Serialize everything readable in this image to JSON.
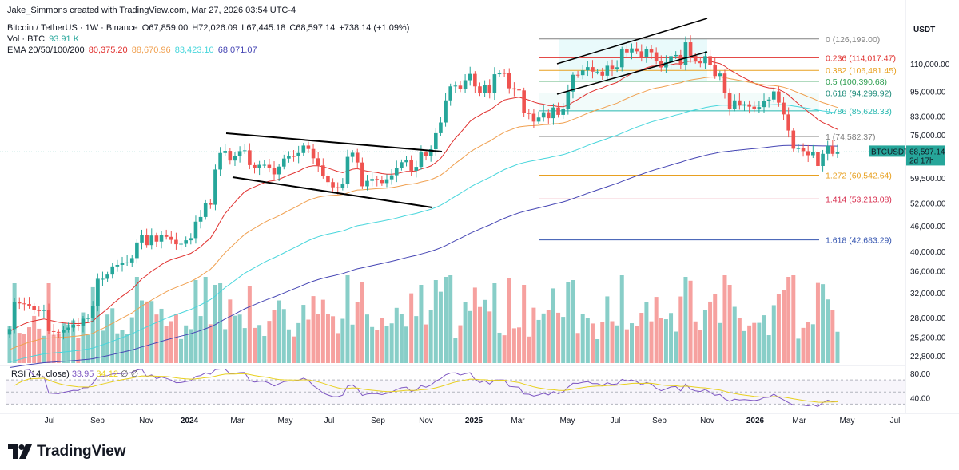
{
  "header": {
    "author_line": "Jake_Simmons created with TradingView.com, Mar 27, 2026 03:54 UTC-4",
    "symbol": "Bitcoin / TetherUS · 1W · Binance",
    "ohlc": {
      "o": "O67,859.00",
      "h": "H72,026.09",
      "l": "L67,445.18",
      "c": "C68,597.14",
      "chg": "+738.14 (+1.09%)"
    },
    "vol_label": "Vol · BTC",
    "vol_value": "93.91 K",
    "ema_label": "EMA 20/50/100/200",
    "ema_values": [
      "80,375.20",
      "88,670.96",
      "83,423.10",
      "68,071.07"
    ]
  },
  "colors": {
    "up": "#26a69a",
    "down": "#ef5350",
    "ema20": "#e0302e",
    "ema50": "#f0a050",
    "ema100": "#48d6dc",
    "ema200": "#4646b4",
    "fib0": "#808080",
    "fib236": "#e0302e",
    "fib382": "#e8a020",
    "fib5": "#2e9e50",
    "fib618": "#1a8a78",
    "fib786": "#28b8b0",
    "fib1": "#808080",
    "fib1272": "#e8a020",
    "fib1414": "#d83050",
    "fib1618": "#3454b0"
  },
  "price_axis": {
    "currency": "USDT",
    "ticks": [
      "110,000.00",
      "95,000.00",
      "83,000.00",
      "75,000.00",
      "59,500.00",
      "52,000.00",
      "46,000.00",
      "40,000.00",
      "36,000.00",
      "32,000.00",
      "28,000.00",
      "25,200.00",
      "22,800.00"
    ],
    "last_symbol": "BTCUSDT",
    "last_price": "68,597.14",
    "countdown": "2d 17h"
  },
  "rsi": {
    "label": "RSI (14, close)",
    "value": "33.95",
    "ma_value": "34.12",
    "null_marks": "∅ ∅",
    "ticks": [
      "80.00",
      "40.00"
    ]
  },
  "time_axis": [
    "Jul",
    "Sep",
    "Nov",
    "2024",
    "Mar",
    "May",
    "Jul",
    "Sep",
    "Nov",
    "2025",
    "Mar",
    "May",
    "Jul",
    "Sep",
    "Nov",
    "2026",
    "Mar",
    "May",
    "Jul"
  ],
  "fib_levels": [
    {
      "label": "0 (126,199.00)",
      "color": "#808080"
    },
    {
      "label": "0.236 (114,017.47)",
      "color": "#e0302e"
    },
    {
      "label": "0.382 (106,481.45)",
      "color": "#e8a020"
    },
    {
      "label": "0.5 (100,390.68)",
      "color": "#2e9e50"
    },
    {
      "label": "0.618 (94,299.92)",
      "color": "#1a8a78"
    },
    {
      "label": "0.786 (85,628.33)",
      "color": "#28b8b0"
    },
    {
      "label": "1 (74,582.37)",
      "color": "#808080"
    },
    {
      "label": "1.272 (60,542.64)",
      "color": "#e8a020"
    },
    {
      "label": "1.414 (53,213.08)",
      "color": "#d83050"
    },
    {
      "label": "1.618 (42,683.29)",
      "color": "#3454b0"
    }
  ],
  "brand": "TradingView",
  "chart_data": {
    "type": "candlestick",
    "title": "Bitcoin / TetherUS · 1W · Binance",
    "ylim": [
      21500,
      138000
    ],
    "log_scale": true,
    "start": "2023-06",
    "end": "2026-07",
    "weekly_closes": [
      26400,
      30500,
      30300,
      30200,
      29900,
      29200,
      29100,
      29300,
      26100,
      26000,
      25900,
      26300,
      26600,
      27000,
      26900,
      27900,
      28000,
      29900,
      34500,
      34600,
      35400,
      37000,
      37300,
      37700,
      37800,
      38700,
      42100,
      43900,
      41500,
      43700,
      42300,
      43900,
      43400,
      42700,
      41700,
      41800,
      42600,
      43100,
      47100,
      48300,
      52100,
      51600,
      62400,
      68200,
      69000,
      65500,
      67200,
      68900,
      69200,
      63900,
      62900,
      64000,
      64000,
      62800,
      60800,
      63400,
      66200,
      67100,
      67000,
      68200,
      71000,
      69700,
      66300,
      63800,
      60300,
      58300,
      56700,
      56600,
      57700,
      66800,
      68300,
      64800,
      57000,
      58700,
      59300,
      59100,
      58000,
      59200,
      60500,
      63000,
      64900,
      65600,
      62000,
      63300,
      68400,
      67000,
      69600,
      75900,
      80400,
      90600,
      97700,
      98100,
      96200,
      101000,
      104500,
      97700,
      94200,
      98300,
      94300,
      104300,
      105000,
      104900,
      96700,
      96100,
      95600,
      84600,
      84300,
      80800,
      82600,
      85000,
      82300,
      87200,
      83800,
      86400,
      95000,
      104000,
      103800,
      106500,
      108400,
      105800,
      105800,
      103500,
      109200,
      107200,
      108300,
      119200,
      117300,
      119900,
      118000,
      114200,
      119300,
      117400,
      111800,
      108200,
      111200,
      115000,
      115700,
      109600,
      123900,
      115200,
      112100,
      110700,
      115000,
      109500,
      103300,
      104700,
      94200,
      86700,
      90600,
      88100,
      88700,
      87600,
      86400,
      87400,
      90500,
      91000,
      95100,
      89500,
      84000,
      77000,
      69800,
      70000,
      68900,
      67400,
      68500,
      63600,
      67900,
      70900,
      67900,
      68597
    ],
    "series": [
      {
        "name": "EMA 20",
        "last": 80375.2
      },
      {
        "name": "EMA 50",
        "last": 88670.96
      },
      {
        "name": "EMA 100",
        "last": 83423.1
      },
      {
        "name": "EMA 200",
        "last": 68071.07
      }
    ],
    "last_price": 68597.14,
    "rsi_last": 33.95
  }
}
